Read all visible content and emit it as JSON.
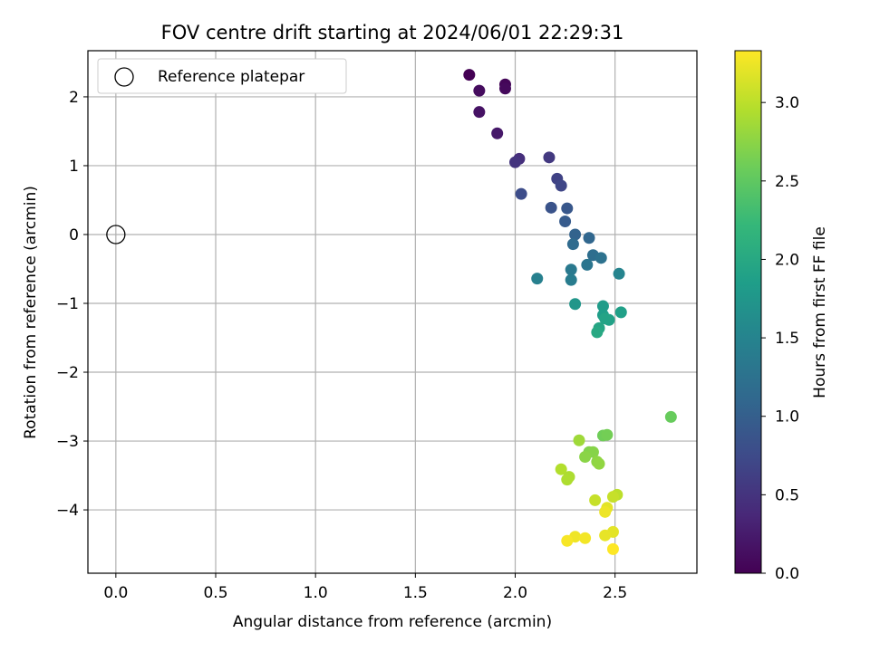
{
  "chart_data": {
    "type": "scatter",
    "title": "FOV centre drift starting at 2024/06/01 22:29:31",
    "xlabel": "Angular distance from reference (arcmin)",
    "ylabel": "Rotation from reference (arcmin)",
    "xlim": [
      -0.14,
      2.91
    ],
    "ylim": [
      -4.92,
      2.67
    ],
    "xticks": [
      0.0,
      0.5,
      1.0,
      1.5,
      2.0,
      2.5
    ],
    "xtick_labels": [
      "0.0",
      "0.5",
      "1.0",
      "1.5",
      "2.0",
      "2.5"
    ],
    "yticks": [
      2,
      1,
      0,
      -1,
      -2,
      -3,
      -4
    ],
    "ytick_labels": [
      "2",
      "1",
      "0",
      "−1",
      "−2",
      "−3",
      "−4"
    ],
    "grid": true,
    "legend": {
      "position": "upper-left",
      "entries": [
        "Reference platepar"
      ]
    },
    "reference_point": {
      "x": 0.0,
      "y": 0.0
    },
    "colorbar": {
      "label": "Hours from first FF file",
      "colormap": "viridis",
      "range": [
        0.0,
        3.33
      ],
      "ticks": [
        0.0,
        0.5,
        1.0,
        1.5,
        2.0,
        2.5,
        3.0
      ],
      "tick_labels": [
        "0.0",
        "0.5",
        "1.0",
        "1.5",
        "2.0",
        "2.5",
        "3.0"
      ]
    },
    "points": [
      {
        "x": 1.77,
        "y": 2.32,
        "c": 0.0
      },
      {
        "x": 1.95,
        "y": 2.18,
        "c": 0.04
      },
      {
        "x": 1.95,
        "y": 2.12,
        "c": 0.08
      },
      {
        "x": 1.82,
        "y": 2.09,
        "c": 0.1
      },
      {
        "x": 1.82,
        "y": 1.78,
        "c": 0.16
      },
      {
        "x": 1.91,
        "y": 1.47,
        "c": 0.22
      },
      {
        "x": 2.02,
        "y": 1.1,
        "c": 0.45
      },
      {
        "x": 2.0,
        "y": 1.05,
        "c": 0.5
      },
      {
        "x": 2.17,
        "y": 1.12,
        "c": 0.55
      },
      {
        "x": 2.21,
        "y": 0.81,
        "c": 0.65
      },
      {
        "x": 2.23,
        "y": 0.71,
        "c": 0.7
      },
      {
        "x": 2.03,
        "y": 0.59,
        "c": 0.78
      },
      {
        "x": 2.18,
        "y": 0.39,
        "c": 0.85
      },
      {
        "x": 2.26,
        "y": 0.38,
        "c": 0.9
      },
      {
        "x": 2.25,
        "y": 0.19,
        "c": 0.95
      },
      {
        "x": 2.3,
        "y": 0.0,
        "c": 1.05
      },
      {
        "x": 2.37,
        "y": -0.05,
        "c": 1.1
      },
      {
        "x": 2.29,
        "y": -0.14,
        "c": 1.15
      },
      {
        "x": 2.39,
        "y": -0.3,
        "c": 1.2
      },
      {
        "x": 2.43,
        "y": -0.34,
        "c": 1.25
      },
      {
        "x": 2.36,
        "y": -0.44,
        "c": 1.3
      },
      {
        "x": 2.28,
        "y": -0.51,
        "c": 1.35
      },
      {
        "x": 2.28,
        "y": -0.66,
        "c": 1.4
      },
      {
        "x": 2.11,
        "y": -0.64,
        "c": 1.45
      },
      {
        "x": 2.52,
        "y": -0.57,
        "c": 1.5
      },
      {
        "x": 2.3,
        "y": -1.01,
        "c": 1.75
      },
      {
        "x": 2.44,
        "y": -1.04,
        "c": 1.82
      },
      {
        "x": 2.44,
        "y": -1.17,
        "c": 1.85
      },
      {
        "x": 2.53,
        "y": -1.13,
        "c": 1.88
      },
      {
        "x": 2.47,
        "y": -1.24,
        "c": 1.9
      },
      {
        "x": 2.45,
        "y": -1.22,
        "c": 1.93
      },
      {
        "x": 2.42,
        "y": -1.36,
        "c": 1.96
      },
      {
        "x": 2.41,
        "y": -1.42,
        "c": 2.0
      },
      {
        "x": 2.78,
        "y": -2.65,
        "c": 2.55
      },
      {
        "x": 2.44,
        "y": -2.92,
        "c": 2.6
      },
      {
        "x": 2.46,
        "y": -2.91,
        "c": 2.62
      },
      {
        "x": 2.32,
        "y": -2.99,
        "c": 2.85
      },
      {
        "x": 2.37,
        "y": -3.16,
        "c": 2.7
      },
      {
        "x": 2.39,
        "y": -3.16,
        "c": 2.72
      },
      {
        "x": 2.35,
        "y": -3.23,
        "c": 2.74
      },
      {
        "x": 2.41,
        "y": -3.3,
        "c": 2.76
      },
      {
        "x": 2.42,
        "y": -3.33,
        "c": 2.78
      },
      {
        "x": 2.23,
        "y": -3.41,
        "c": 2.95
      },
      {
        "x": 2.27,
        "y": -3.52,
        "c": 2.92
      },
      {
        "x": 2.26,
        "y": -3.56,
        "c": 2.93
      },
      {
        "x": 2.4,
        "y": -3.86,
        "c": 3.05
      },
      {
        "x": 2.51,
        "y": -3.78,
        "c": 3.0
      },
      {
        "x": 2.49,
        "y": -3.81,
        "c": 3.05
      },
      {
        "x": 2.46,
        "y": -3.97,
        "c": 3.2
      },
      {
        "x": 2.45,
        "y": -4.03,
        "c": 3.25
      },
      {
        "x": 2.49,
        "y": -4.32,
        "c": 3.2
      },
      {
        "x": 2.45,
        "y": -4.37,
        "c": 3.22
      },
      {
        "x": 2.3,
        "y": -4.39,
        "c": 3.26
      },
      {
        "x": 2.35,
        "y": -4.41,
        "c": 3.28
      },
      {
        "x": 2.26,
        "y": -4.45,
        "c": 3.3
      },
      {
        "x": 2.49,
        "y": -4.57,
        "c": 3.33
      }
    ]
  }
}
